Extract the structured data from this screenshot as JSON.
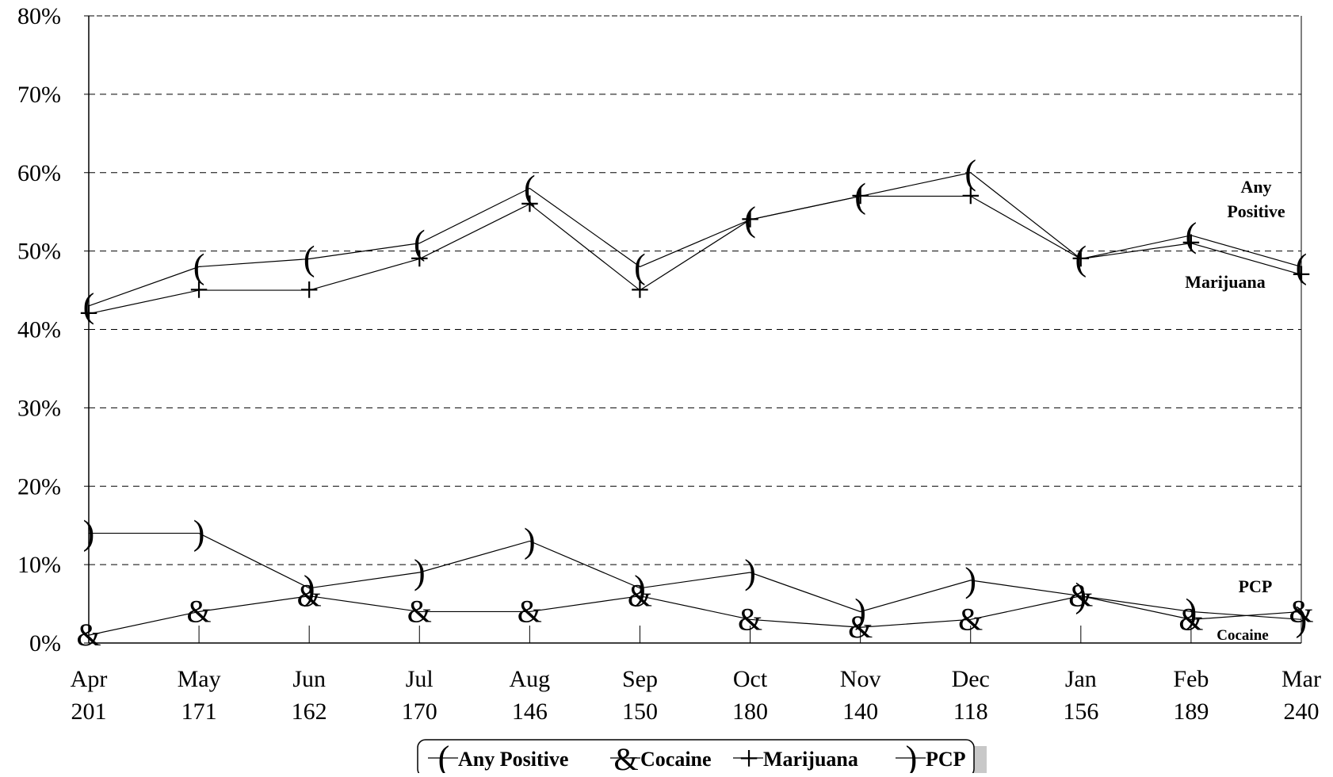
{
  "chart_data": {
    "type": "line",
    "categories": [
      "Apr",
      "May",
      "Jun",
      "Jul",
      "Aug",
      "Sep",
      "Oct",
      "Nov",
      "Dec",
      "Jan",
      "Feb",
      "Mar"
    ],
    "category_counts": [
      "201",
      "171",
      "162",
      "170",
      "146",
      "150",
      "180",
      "140",
      "118",
      "156",
      "189",
      "240"
    ],
    "y_ticks": [
      "0%",
      "10%",
      "20%",
      "30%",
      "40%",
      "50%",
      "60%",
      "70%",
      "80%"
    ],
    "ylim": [
      0,
      80
    ],
    "grid": "horizontal dashed",
    "legend_position": "bottom",
    "series": [
      {
        "name": "Any Positive",
        "marker": "(",
        "values": [
          43,
          48,
          49,
          51,
          58,
          48,
          54,
          57,
          60,
          49,
          52,
          48
        ]
      },
      {
        "name": "Cocaine",
        "marker": "&",
        "values": [
          1,
          4,
          6,
          4,
          4,
          6,
          3,
          2,
          3,
          6,
          3,
          4
        ]
      },
      {
        "name": "Marijuana",
        "marker": "+",
        "values": [
          42,
          45,
          45,
          49,
          56,
          45,
          54,
          57,
          57,
          49,
          51,
          47
        ]
      },
      {
        "name": "PCP",
        "marker": ")",
        "values": [
          14,
          14,
          7,
          9,
          13,
          7,
          9,
          4,
          8,
          6,
          4,
          3
        ]
      }
    ],
    "annotations": {
      "any_positive": [
        "Any",
        "Positive"
      ],
      "marijuana": "Marijuana",
      "pcp": "PCP",
      "cocaine": "Cocaine"
    }
  }
}
